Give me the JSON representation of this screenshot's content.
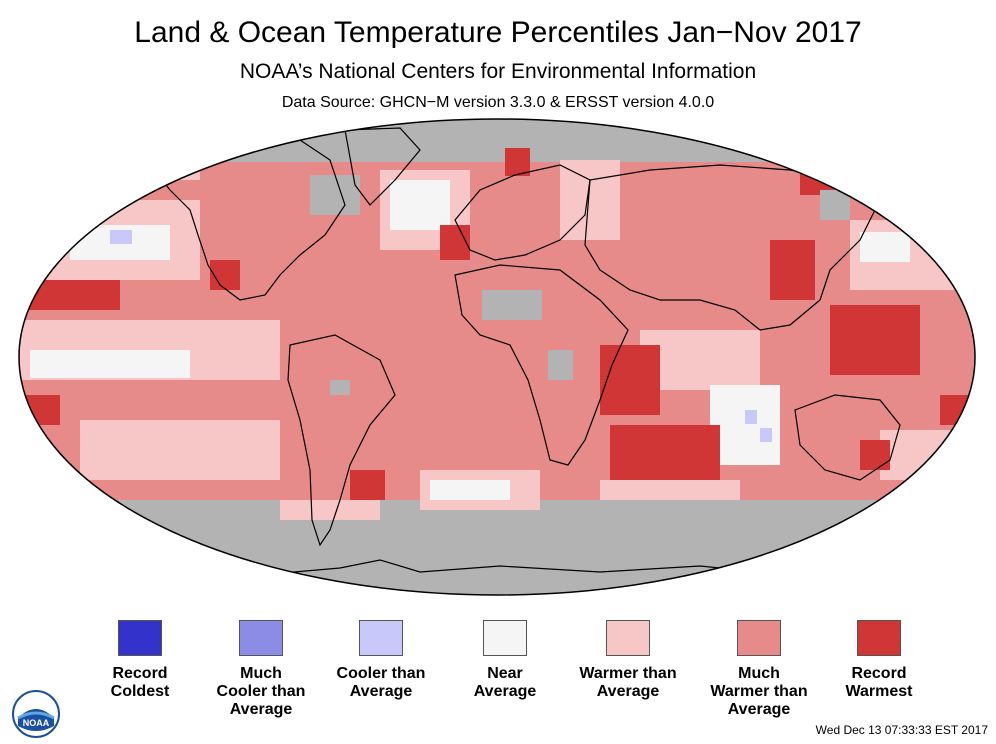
{
  "header": {
    "title": "Land & Ocean Temperature Percentiles Jan−Nov 2017",
    "subtitle": "NOAA’s National Centers for Environmental Information",
    "source": "Data Source: GHCN−M version 3.3.0 & ERSST version 4.0.0"
  },
  "map": {
    "projection": "Robinson",
    "no_data_color": "#b3b3b3",
    "land_border_color": "#000000"
  },
  "legend": [
    {
      "label": "Record\nColdest",
      "color": "#3333cc"
    },
    {
      "label": "Much\nCooler than\nAverage",
      "color": "#8c8ce6"
    },
    {
      "label": "Cooler than\nAverage",
      "color": "#c8c8fa"
    },
    {
      "label": "Near\nAverage",
      "color": "#f5f5f5"
    },
    {
      "label": "Warmer than\nAverage",
      "color": "#f7c6c6"
    },
    {
      "label": "Much\nWarmer than\nAverage",
      "color": "#e68a8a"
    },
    {
      "label": "Record\nWarmest",
      "color": "#d13636"
    }
  ],
  "footer": {
    "timestamp": "Wed Dec 13 07:33:33 EST 2017",
    "logo_text": "NOAA"
  }
}
